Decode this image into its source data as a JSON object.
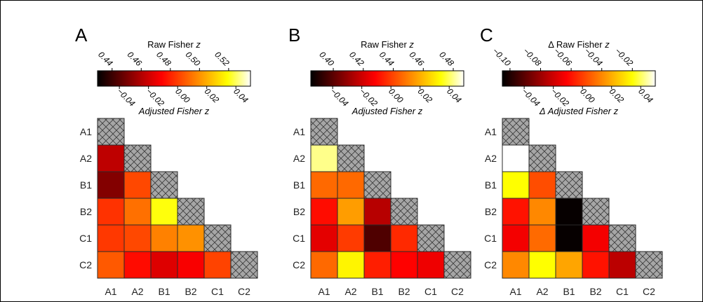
{
  "chart_data": [
    {
      "type": "heatmap",
      "panel_label": "A",
      "colorbar": {
        "top_title": "Raw Fisher z",
        "top_range": [
          0.43,
          0.535
        ],
        "top_ticks": [
          0.44,
          0.46,
          0.48,
          0.5,
          0.52
        ],
        "top_tick_labels": [
          "0.44",
          "0.46",
          "0.48",
          "0.50",
          "0.52"
        ],
        "bottom_title": "Adjusted Fisher z",
        "bottom_range": [
          -0.055,
          0.05
        ],
        "bottom_ticks": [
          -0.04,
          -0.02,
          0.0,
          0.02,
          0.04
        ],
        "bottom_tick_labels": [
          "-0.04",
          "-0.02",
          "0.00",
          "0.02",
          "0.04"
        ]
      },
      "row_labels": [
        "A1",
        "A2",
        "B1",
        "B2",
        "C1",
        "C2"
      ],
      "col_labels": [
        "A1",
        "A2",
        "B1",
        "B2",
        "C1",
        "C2"
      ],
      "values": [
        [
          null
        ],
        [
          0.462,
          null
        ],
        [
          0.452,
          0.487,
          null
        ],
        [
          0.483,
          0.494,
          0.52,
          null
        ],
        [
          0.484,
          0.487,
          0.497,
          0.5,
          null
        ],
        [
          0.49,
          0.476,
          0.468,
          0.473,
          0.486,
          null
        ]
      ]
    },
    {
      "type": "heatmap",
      "panel_label": "B",
      "colorbar": {
        "top_title": "Raw Fisher z",
        "top_range": [
          0.385,
          0.487
        ],
        "top_ticks": [
          0.4,
          0.42,
          0.44,
          0.46,
          0.48
        ],
        "top_tick_labels": [
          "0.40",
          "0.42",
          "0.44",
          "0.46",
          "0.48"
        ],
        "bottom_title": "Adjusted Fisher z",
        "bottom_range": [
          -0.055,
          0.05
        ],
        "bottom_ticks": [
          -0.04,
          -0.02,
          0.0,
          0.02,
          0.04
        ],
        "bottom_tick_labels": [
          "-0.04",
          "-0.02",
          "0.00",
          "0.02",
          "0.04"
        ]
      },
      "row_labels": [
        "A1",
        "A2",
        "B1",
        "B2",
        "C1",
        "C2"
      ],
      "col_labels": [
        "A1",
        "A2",
        "B1",
        "B2",
        "C1",
        "C2"
      ],
      "values": [
        [
          null
        ],
        [
          0.48,
          null
        ],
        [
          0.446,
          0.446,
          null
        ],
        [
          0.43,
          0.455,
          0.415,
          null
        ],
        [
          0.423,
          0.438,
          0.398,
          0.435,
          null
        ],
        [
          0.446,
          0.47,
          0.433,
          0.428,
          0.425,
          null
        ]
      ]
    },
    {
      "type": "heatmap",
      "panel_label": "C",
      "colorbar": {
        "top_title": "Δ Raw Fisher z",
        "top_range": [
          -0.105,
          -0.005
        ],
        "top_ticks": [
          -0.1,
          -0.08,
          -0.06,
          -0.04,
          -0.02
        ],
        "top_tick_labels": [
          "-0.10",
          "-0.08",
          "-0.06",
          "-0.04",
          "-0.02"
        ],
        "bottom_title": "Δ Adjusted Fisher z",
        "bottom_range": [
          -0.055,
          0.05
        ],
        "bottom_ticks": [
          -0.04,
          -0.02,
          0.0,
          0.02,
          0.04
        ],
        "bottom_tick_labels": [
          "-0.04",
          "-0.02",
          "0.00",
          "0.02",
          "0.04"
        ]
      },
      "row_labels": [
        "A1",
        "A2",
        "B1",
        "B2",
        "C1",
        "C2"
      ],
      "col_labels": [
        "A1",
        "A2",
        "B1",
        "B2",
        "C1",
        "C2"
      ],
      "values": [
        [
          null
        ],
        [
          -0.005,
          null
        ],
        [
          -0.02,
          -0.05,
          null
        ],
        [
          -0.06,
          -0.04,
          -0.104,
          null
        ],
        [
          -0.065,
          -0.045,
          -0.104,
          -0.065,
          null
        ],
        [
          -0.04,
          -0.02,
          -0.035,
          -0.06,
          -0.075,
          null
        ]
      ]
    }
  ]
}
